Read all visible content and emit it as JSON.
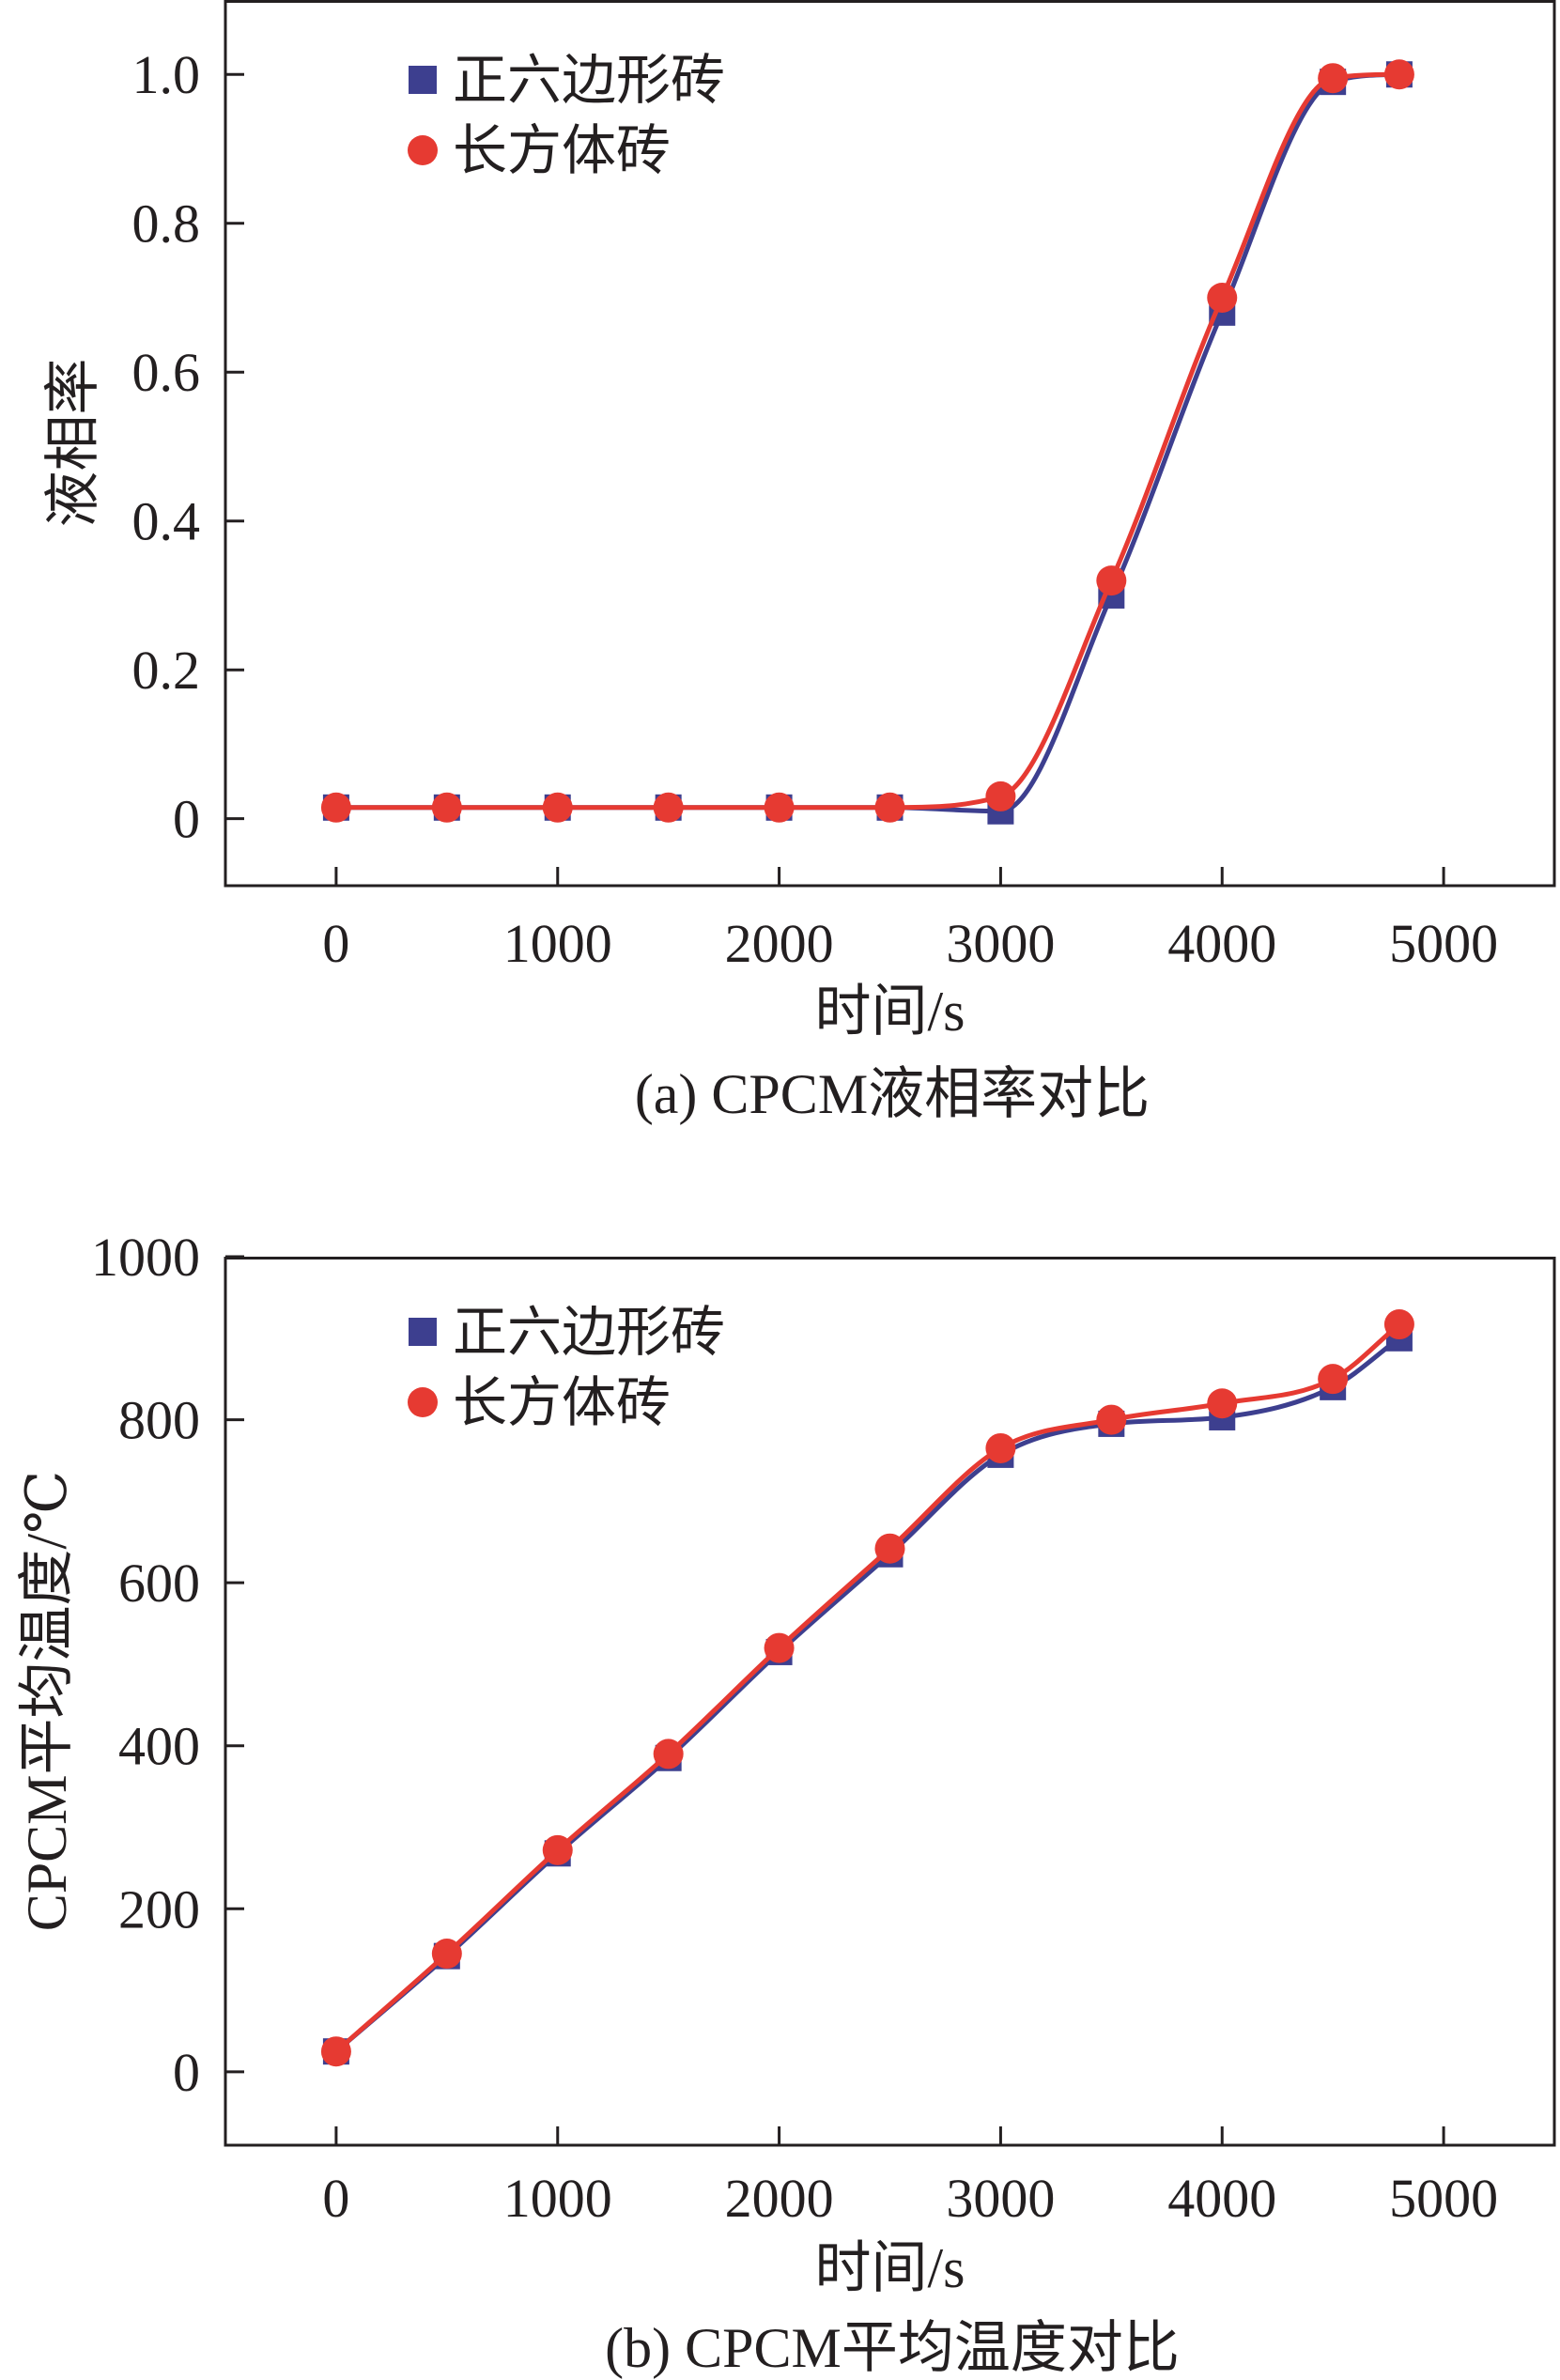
{
  "colors": {
    "hexagon": "#3d3f8f",
    "rectangle": "#e63a32",
    "axis": "#231f20"
  },
  "legend": {
    "hexagon_label": "正六边形砖",
    "rectangle_label": "长方体砖"
  },
  "chart_data": [
    {
      "type": "line",
      "title": "(a) CPCM液相率对比",
      "xlabel": "时间/s",
      "ylabel": "液相率",
      "xlim": [
        -500,
        5500
      ],
      "ylim": [
        -0.09,
        1.1
      ],
      "xticks": [
        0,
        1000,
        2000,
        3000,
        4000,
        5000
      ],
      "xtick_labels": [
        "0",
        "1000",
        "2000",
        "3000",
        "4000",
        "5000"
      ],
      "yticks": [
        0,
        0.2,
        0.4,
        0.6,
        0.8,
        1.0
      ],
      "ytick_labels": [
        "0",
        "0.2",
        "0.4",
        "0.6",
        "0.8",
        "1.0"
      ],
      "x": [
        0,
        500,
        1000,
        1500,
        2000,
        2500,
        3000,
        3500,
        4000,
        4500,
        4800
      ],
      "series": [
        {
          "name": "正六边形砖",
          "marker": "square",
          "values": [
            0.015,
            0.015,
            0.015,
            0.015,
            0.015,
            0.015,
            0.01,
            0.3,
            0.68,
            0.99,
            1.0
          ]
        },
        {
          "name": "长方体砖",
          "marker": "circle",
          "values": [
            0.015,
            0.015,
            0.015,
            0.015,
            0.015,
            0.015,
            0.03,
            0.32,
            0.7,
            0.995,
            1.0
          ]
        }
      ]
    },
    {
      "type": "line",
      "title": "(b) CPCM平均温度对比",
      "xlabel": "时间/s",
      "ylabel": "CPCM平均温度/℃",
      "xlim": [
        -500,
        5500
      ],
      "ylim": [
        -90,
        1000
      ],
      "xticks": [
        0,
        1000,
        2000,
        3000,
        4000,
        5000
      ],
      "xtick_labels": [
        "0",
        "1000",
        "2000",
        "3000",
        "4000",
        "5000"
      ],
      "yticks": [
        0,
        200,
        400,
        600,
        800,
        1000
      ],
      "ytick_labels": [
        "0",
        "200",
        "400",
        "600",
        "800",
        "1000"
      ],
      "x": [
        0,
        500,
        1000,
        1500,
        2000,
        2500,
        3000,
        3500,
        4000,
        4500,
        4800
      ],
      "series": [
        {
          "name": "正六边形砖",
          "marker": "square",
          "values": [
            25,
            142,
            268,
            385,
            515,
            635,
            757,
            795,
            803,
            840,
            900
          ]
        },
        {
          "name": "长方体砖",
          "marker": "circle",
          "values": [
            25,
            145,
            272,
            390,
            520,
            642,
            765,
            800,
            820,
            850,
            917
          ]
        }
      ]
    }
  ]
}
